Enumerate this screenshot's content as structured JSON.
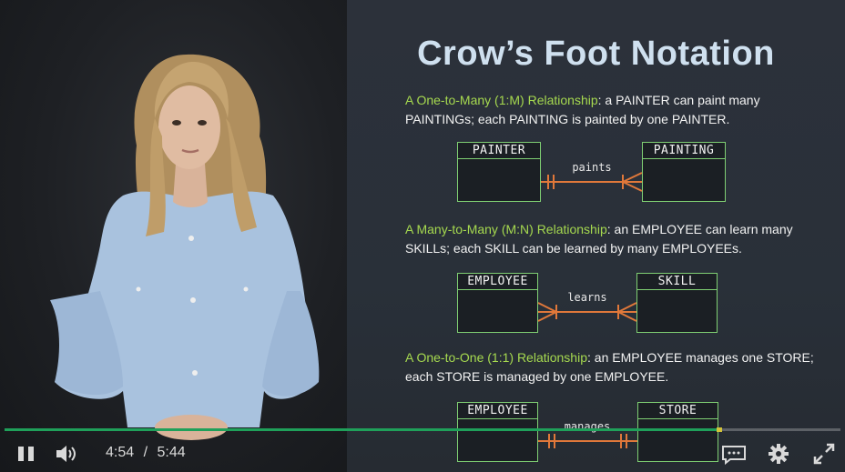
{
  "slide": {
    "title": "Crow’s Foot Notation",
    "one_to_many": {
      "heading": "A One-to-Many (1:M) Relationship",
      "text1": ": a PAINTER can paint many",
      "text2": "PAINTINGs; each PAINTING is painted by one PAINTER.",
      "left_entity": "PAINTER",
      "right_entity": "PAINTING",
      "verb": "paints"
    },
    "many_to_many": {
      "heading": "A Many-to-Many (M:N) Relationship",
      "text1": ": an EMPLOYEE can learn many",
      "text2": "SKILLs; each SKILL can be learned by many EMPLOYEEs.",
      "left_entity": "EMPLOYEE",
      "right_entity": "SKILL",
      "verb": "learns"
    },
    "one_to_one": {
      "heading": "A One-to-One (1:1) Relationship",
      "text1": ": an EMPLOYEE manages one STORE;",
      "text2": "each STORE is managed by one EMPLOYEE.",
      "left_entity": "EMPLOYEE",
      "right_entity": "STORE",
      "verb": "manages"
    }
  },
  "player": {
    "current_time": "4:54",
    "separator": "/",
    "duration": "5:44",
    "progress_percent": 85.5,
    "icons": [
      "pause-icon",
      "volume-icon",
      "captions-icon",
      "gear-icon",
      "fullscreen-icon"
    ]
  },
  "colors": {
    "accent_green": "#1fa05a",
    "highlight": "#a6d94f",
    "entity_border": "#7fcf73",
    "connector": "#e0783a",
    "title": "#cfe0ef"
  }
}
